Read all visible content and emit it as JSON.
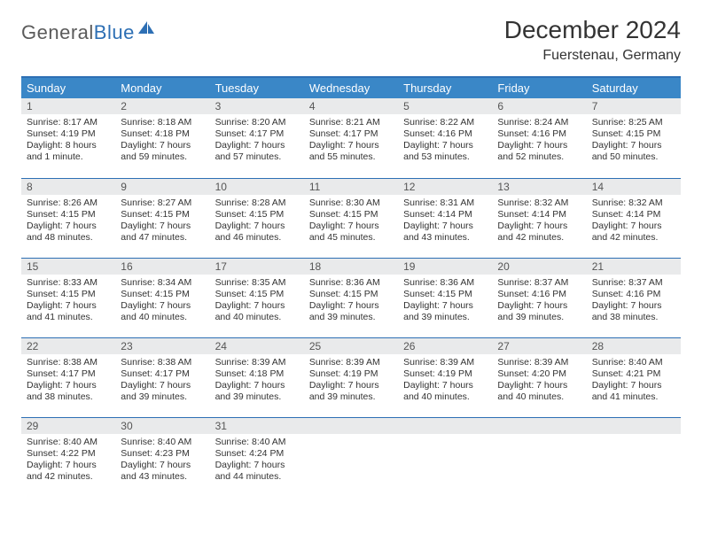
{
  "logo": {
    "text1": "General",
    "text2": "Blue"
  },
  "title": "December 2024",
  "location": "Fuerstenau, Germany",
  "colors": {
    "header_bg": "#3a87c7",
    "border": "#2d6fb4",
    "daynum_bg": "#e9eaeb",
    "text": "#333333",
    "logo_gray": "#5b5b5b",
    "logo_blue": "#2d6fb4"
  },
  "typography": {
    "title_fontsize": 28,
    "location_fontsize": 16,
    "dayheader_fontsize": 13,
    "daynum_fontsize": 12,
    "body_fontsize": 10.5
  },
  "day_headers": [
    "Sunday",
    "Monday",
    "Tuesday",
    "Wednesday",
    "Thursday",
    "Friday",
    "Saturday"
  ],
  "weeks": [
    [
      {
        "n": "1",
        "sunrise": "Sunrise: 8:17 AM",
        "sunset": "Sunset: 4:19 PM",
        "daylight": "Daylight: 8 hours and 1 minute."
      },
      {
        "n": "2",
        "sunrise": "Sunrise: 8:18 AM",
        "sunset": "Sunset: 4:18 PM",
        "daylight": "Daylight: 7 hours and 59 minutes."
      },
      {
        "n": "3",
        "sunrise": "Sunrise: 8:20 AM",
        "sunset": "Sunset: 4:17 PM",
        "daylight": "Daylight: 7 hours and 57 minutes."
      },
      {
        "n": "4",
        "sunrise": "Sunrise: 8:21 AM",
        "sunset": "Sunset: 4:17 PM",
        "daylight": "Daylight: 7 hours and 55 minutes."
      },
      {
        "n": "5",
        "sunrise": "Sunrise: 8:22 AM",
        "sunset": "Sunset: 4:16 PM",
        "daylight": "Daylight: 7 hours and 53 minutes."
      },
      {
        "n": "6",
        "sunrise": "Sunrise: 8:24 AM",
        "sunset": "Sunset: 4:16 PM",
        "daylight": "Daylight: 7 hours and 52 minutes."
      },
      {
        "n": "7",
        "sunrise": "Sunrise: 8:25 AM",
        "sunset": "Sunset: 4:15 PM",
        "daylight": "Daylight: 7 hours and 50 minutes."
      }
    ],
    [
      {
        "n": "8",
        "sunrise": "Sunrise: 8:26 AM",
        "sunset": "Sunset: 4:15 PM",
        "daylight": "Daylight: 7 hours and 48 minutes."
      },
      {
        "n": "9",
        "sunrise": "Sunrise: 8:27 AM",
        "sunset": "Sunset: 4:15 PM",
        "daylight": "Daylight: 7 hours and 47 minutes."
      },
      {
        "n": "10",
        "sunrise": "Sunrise: 8:28 AM",
        "sunset": "Sunset: 4:15 PM",
        "daylight": "Daylight: 7 hours and 46 minutes."
      },
      {
        "n": "11",
        "sunrise": "Sunrise: 8:30 AM",
        "sunset": "Sunset: 4:15 PM",
        "daylight": "Daylight: 7 hours and 45 minutes."
      },
      {
        "n": "12",
        "sunrise": "Sunrise: 8:31 AM",
        "sunset": "Sunset: 4:14 PM",
        "daylight": "Daylight: 7 hours and 43 minutes."
      },
      {
        "n": "13",
        "sunrise": "Sunrise: 8:32 AM",
        "sunset": "Sunset: 4:14 PM",
        "daylight": "Daylight: 7 hours and 42 minutes."
      },
      {
        "n": "14",
        "sunrise": "Sunrise: 8:32 AM",
        "sunset": "Sunset: 4:14 PM",
        "daylight": "Daylight: 7 hours and 42 minutes."
      }
    ],
    [
      {
        "n": "15",
        "sunrise": "Sunrise: 8:33 AM",
        "sunset": "Sunset: 4:15 PM",
        "daylight": "Daylight: 7 hours and 41 minutes."
      },
      {
        "n": "16",
        "sunrise": "Sunrise: 8:34 AM",
        "sunset": "Sunset: 4:15 PM",
        "daylight": "Daylight: 7 hours and 40 minutes."
      },
      {
        "n": "17",
        "sunrise": "Sunrise: 8:35 AM",
        "sunset": "Sunset: 4:15 PM",
        "daylight": "Daylight: 7 hours and 40 minutes."
      },
      {
        "n": "18",
        "sunrise": "Sunrise: 8:36 AM",
        "sunset": "Sunset: 4:15 PM",
        "daylight": "Daylight: 7 hours and 39 minutes."
      },
      {
        "n": "19",
        "sunrise": "Sunrise: 8:36 AM",
        "sunset": "Sunset: 4:15 PM",
        "daylight": "Daylight: 7 hours and 39 minutes."
      },
      {
        "n": "20",
        "sunrise": "Sunrise: 8:37 AM",
        "sunset": "Sunset: 4:16 PM",
        "daylight": "Daylight: 7 hours and 39 minutes."
      },
      {
        "n": "21",
        "sunrise": "Sunrise: 8:37 AM",
        "sunset": "Sunset: 4:16 PM",
        "daylight": "Daylight: 7 hours and 38 minutes."
      }
    ],
    [
      {
        "n": "22",
        "sunrise": "Sunrise: 8:38 AM",
        "sunset": "Sunset: 4:17 PM",
        "daylight": "Daylight: 7 hours and 38 minutes."
      },
      {
        "n": "23",
        "sunrise": "Sunrise: 8:38 AM",
        "sunset": "Sunset: 4:17 PM",
        "daylight": "Daylight: 7 hours and 39 minutes."
      },
      {
        "n": "24",
        "sunrise": "Sunrise: 8:39 AM",
        "sunset": "Sunset: 4:18 PM",
        "daylight": "Daylight: 7 hours and 39 minutes."
      },
      {
        "n": "25",
        "sunrise": "Sunrise: 8:39 AM",
        "sunset": "Sunset: 4:19 PM",
        "daylight": "Daylight: 7 hours and 39 minutes."
      },
      {
        "n": "26",
        "sunrise": "Sunrise: 8:39 AM",
        "sunset": "Sunset: 4:19 PM",
        "daylight": "Daylight: 7 hours and 40 minutes."
      },
      {
        "n": "27",
        "sunrise": "Sunrise: 8:39 AM",
        "sunset": "Sunset: 4:20 PM",
        "daylight": "Daylight: 7 hours and 40 minutes."
      },
      {
        "n": "28",
        "sunrise": "Sunrise: 8:40 AM",
        "sunset": "Sunset: 4:21 PM",
        "daylight": "Daylight: 7 hours and 41 minutes."
      }
    ],
    [
      {
        "n": "29",
        "sunrise": "Sunrise: 8:40 AM",
        "sunset": "Sunset: 4:22 PM",
        "daylight": "Daylight: 7 hours and 42 minutes."
      },
      {
        "n": "30",
        "sunrise": "Sunrise: 8:40 AM",
        "sunset": "Sunset: 4:23 PM",
        "daylight": "Daylight: 7 hours and 43 minutes."
      },
      {
        "n": "31",
        "sunrise": "Sunrise: 8:40 AM",
        "sunset": "Sunset: 4:24 PM",
        "daylight": "Daylight: 7 hours and 44 minutes."
      },
      null,
      null,
      null,
      null
    ]
  ]
}
